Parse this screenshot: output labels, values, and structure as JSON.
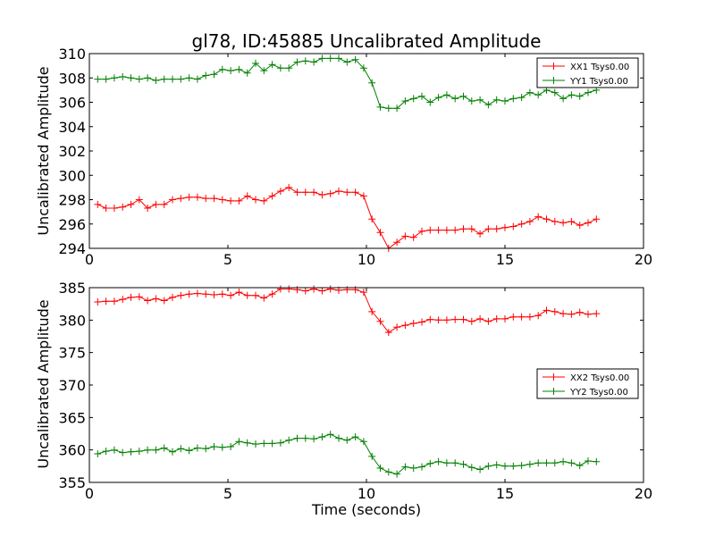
{
  "chart_data": [
    {
      "type": "line",
      "title": "gl78, ID:45885 Uncalibrated Amplitude",
      "xlabel": "",
      "ylabel": "Uncalibrated Amplitude",
      "xlim": [
        0,
        20
      ],
      "ylim": [
        294,
        310
      ],
      "xticks": [
        "0",
        "5",
        "10",
        "15",
        "20"
      ],
      "yticks": [
        "294",
        "296",
        "298",
        "300",
        "302",
        "304",
        "306",
        "308",
        "310"
      ],
      "grid": false,
      "legend_position": "top-right",
      "x": [
        0.3,
        0.6,
        0.9,
        1.2,
        1.5,
        1.8,
        2.1,
        2.4,
        2.7,
        3.0,
        3.3,
        3.6,
        3.9,
        4.2,
        4.5,
        4.8,
        5.1,
        5.4,
        5.7,
        6.0,
        6.3,
        6.6,
        6.9,
        7.2,
        7.5,
        7.8,
        8.1,
        8.4,
        8.7,
        9.0,
        9.3,
        9.6,
        9.9,
        10.2,
        10.5,
        10.8,
        11.1,
        11.4,
        11.7,
        12.0,
        12.3,
        12.6,
        12.9,
        13.2,
        13.5,
        13.8,
        14.1,
        14.4,
        14.7,
        15.0,
        15.3,
        15.6,
        15.9,
        16.2,
        16.5,
        16.8,
        17.1,
        17.4,
        17.7,
        18.0,
        18.3
      ],
      "series": [
        {
          "name": "XX1 Tsys0.00",
          "color": "#ff0000",
          "values": [
            297.6,
            297.3,
            297.3,
            297.4,
            297.6,
            298.0,
            297.3,
            297.6,
            297.6,
            298.0,
            298.1,
            298.2,
            298.2,
            298.1,
            298.1,
            298.0,
            297.9,
            297.9,
            298.3,
            298.0,
            297.9,
            298.3,
            298.7,
            299.0,
            298.6,
            298.6,
            298.6,
            298.4,
            298.5,
            298.7,
            298.6,
            298.6,
            298.3,
            296.4,
            295.3,
            294.0,
            294.5,
            295.0,
            294.9,
            295.4,
            295.5,
            295.5,
            295.5,
            295.5,
            295.6,
            295.6,
            295.2,
            295.6,
            295.6,
            295.7,
            295.8,
            296.0,
            296.2,
            296.6,
            296.4,
            296.2,
            296.1,
            296.2,
            295.9,
            296.1,
            296.4
          ]
        },
        {
          "name": "YY1 Tsys0.00",
          "color": "#008000",
          "values": [
            307.9,
            307.9,
            308.0,
            308.1,
            308.0,
            307.9,
            308.0,
            307.8,
            307.9,
            307.9,
            307.9,
            308.0,
            307.9,
            308.2,
            308.3,
            308.7,
            308.6,
            308.7,
            308.4,
            309.2,
            308.6,
            309.1,
            308.8,
            308.8,
            309.3,
            309.4,
            309.3,
            309.6,
            309.6,
            309.6,
            309.3,
            309.5,
            308.8,
            307.6,
            305.6,
            305.5,
            305.5,
            306.1,
            306.3,
            306.5,
            306.0,
            306.4,
            306.6,
            306.3,
            306.5,
            306.1,
            306.2,
            305.8,
            306.2,
            306.1,
            306.3,
            306.4,
            306.8,
            306.6,
            307.0,
            306.8,
            306.3,
            306.6,
            306.5,
            306.8,
            307.0
          ]
        }
      ]
    },
    {
      "type": "line",
      "title": "",
      "xlabel": "Time (seconds)",
      "ylabel": "Uncalibrated Amplitude",
      "xlim": [
        0,
        20
      ],
      "ylim": [
        355,
        385
      ],
      "xticks": [
        "0",
        "5",
        "10",
        "15",
        "20"
      ],
      "yticks": [
        "355",
        "360",
        "365",
        "370",
        "375",
        "380",
        "385"
      ],
      "grid": false,
      "legend_position": "center-right",
      "x": [
        0.3,
        0.6,
        0.9,
        1.2,
        1.5,
        1.8,
        2.1,
        2.4,
        2.7,
        3.0,
        3.3,
        3.6,
        3.9,
        4.2,
        4.5,
        4.8,
        5.1,
        5.4,
        5.7,
        6.0,
        6.3,
        6.6,
        6.9,
        7.2,
        7.5,
        7.8,
        8.1,
        8.4,
        8.7,
        9.0,
        9.3,
        9.6,
        9.9,
        10.2,
        10.5,
        10.8,
        11.1,
        11.4,
        11.7,
        12.0,
        12.3,
        12.6,
        12.9,
        13.2,
        13.5,
        13.8,
        14.1,
        14.4,
        14.7,
        15.0,
        15.3,
        15.6,
        15.9,
        16.2,
        16.5,
        16.8,
        17.1,
        17.4,
        17.7,
        18.0,
        18.3
      ],
      "series": [
        {
          "name": "XX2 Tsys0.00",
          "color": "#ff0000",
          "values": [
            382.8,
            382.9,
            382.9,
            383.2,
            383.5,
            383.6,
            383.0,
            383.3,
            383.0,
            383.5,
            383.8,
            384.0,
            384.1,
            384.0,
            383.9,
            384.0,
            383.8,
            384.3,
            383.8,
            383.8,
            383.4,
            384.0,
            384.8,
            384.8,
            384.7,
            384.5,
            384.8,
            384.5,
            384.8,
            384.6,
            384.7,
            384.7,
            384.3,
            381.3,
            379.8,
            378.1,
            378.9,
            379.2,
            379.5,
            379.7,
            380.1,
            380.0,
            380.0,
            380.1,
            380.1,
            379.8,
            380.2,
            379.8,
            380.2,
            380.2,
            380.5,
            380.5,
            380.5,
            380.7,
            381.5,
            381.3,
            381.0,
            380.9,
            381.2,
            380.9,
            381.0
          ]
        },
        {
          "name": "YY2 Tsys0.00",
          "color": "#008000",
          "values": [
            359.4,
            359.8,
            360.0,
            359.6,
            359.7,
            359.8,
            360.0,
            360.0,
            360.3,
            359.7,
            360.2,
            359.9,
            360.3,
            360.2,
            360.5,
            360.4,
            360.5,
            361.3,
            361.1,
            360.9,
            361.0,
            361.0,
            361.1,
            361.5,
            361.8,
            361.8,
            361.7,
            362.0,
            362.4,
            361.8,
            361.5,
            362.0,
            361.3,
            359.0,
            357.2,
            356.6,
            356.3,
            357.4,
            357.2,
            357.4,
            357.9,
            358.2,
            358.0,
            358.0,
            357.8,
            357.3,
            357.0,
            357.5,
            357.7,
            357.5,
            357.5,
            357.6,
            357.8,
            358.0,
            358.0,
            358.0,
            358.2,
            358.0,
            357.6,
            358.3,
            358.2
          ]
        }
      ]
    }
  ]
}
